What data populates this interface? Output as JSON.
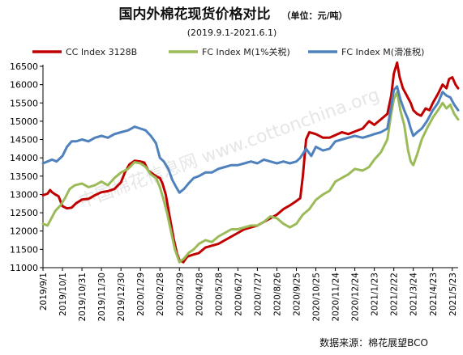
{
  "chart_data": {
    "type": "line",
    "title": "国内外棉花现货价格对比",
    "unit_note": "（单位：元/吨）",
    "subtitle": "(2019.9.1-2021.6.1)",
    "source": "数据来源：棉花展望BCO",
    "watermark": "中国棉花信息网 www.cottonchina.org",
    "ylim": [
      11000,
      16500
    ],
    "yticks": [
      11000,
      11500,
      12000,
      12500,
      13000,
      13500,
      14000,
      14500,
      15000,
      15500,
      16000,
      16500
    ],
    "xlim": [
      "2019-09-01",
      "2021-06-01"
    ],
    "xtick_labels": [
      {
        "date": "2019-09-01",
        "label": "2019/9/1"
      },
      {
        "date": "2019-10-01",
        "label": "2019/10/1"
      },
      {
        "date": "2019-10-31",
        "label": "2019/10/31"
      },
      {
        "date": "2019-11-30",
        "label": "2019/11/30"
      },
      {
        "date": "2019-12-30",
        "label": "2019/12/30"
      },
      {
        "date": "2020-01-29",
        "label": "2020/1/29"
      },
      {
        "date": "2020-02-28",
        "label": "2020/2/28"
      },
      {
        "date": "2020-03-29",
        "label": "2020/3/29"
      },
      {
        "date": "2020-04-28",
        "label": "2020/4/28"
      },
      {
        "date": "2020-05-28",
        "label": "2020/5/28"
      },
      {
        "date": "2020-06-27",
        "label": "2020/6/27"
      },
      {
        "date": "2020-07-27",
        "label": "2020/7/27"
      },
      {
        "date": "2020-08-26",
        "label": "2020/8/26"
      },
      {
        "date": "2020-09-25",
        "label": "2020/9/25"
      },
      {
        "date": "2020-10-25",
        "label": "2020/10/25"
      },
      {
        "date": "2020-11-24",
        "label": "2020/11/24"
      },
      {
        "date": "2020-12-24",
        "label": "2020/12/24"
      },
      {
        "date": "2021-01-23",
        "label": "2021/1/23"
      },
      {
        "date": "2021-02-22",
        "label": "2021/2/22"
      },
      {
        "date": "2021-03-24",
        "label": "2021/3/24"
      },
      {
        "date": "2021-04-23",
        "label": "2021/4/23"
      },
      {
        "date": "2021-05-23",
        "label": "2021/5/23"
      }
    ],
    "grid": false,
    "legend_placement": "top",
    "series": [
      {
        "name": "CC Index 3128B",
        "color": "#c00000",
        "points": [
          [
            "2019-09-01",
            12980
          ],
          [
            "2019-09-08",
            13020
          ],
          [
            "2019-09-12",
            13120
          ],
          [
            "2019-09-15",
            13060
          ],
          [
            "2019-09-20",
            13000
          ],
          [
            "2019-09-25",
            12950
          ],
          [
            "2019-10-01",
            12680
          ],
          [
            "2019-10-08",
            12620
          ],
          [
            "2019-10-15",
            12640
          ],
          [
            "2019-10-22",
            12760
          ],
          [
            "2019-10-31",
            12860
          ],
          [
            "2019-11-10",
            12880
          ],
          [
            "2019-11-20",
            12980
          ],
          [
            "2019-11-30",
            13060
          ],
          [
            "2019-12-10",
            13090
          ],
          [
            "2019-12-20",
            13150
          ],
          [
            "2019-12-30",
            13330
          ],
          [
            "2020-01-05",
            13600
          ],
          [
            "2020-01-12",
            13820
          ],
          [
            "2020-01-20",
            13920
          ],
          [
            "2020-01-29",
            13900
          ],
          [
            "2020-02-04",
            13870
          ],
          [
            "2020-02-10",
            13650
          ],
          [
            "2020-02-17",
            13560
          ],
          [
            "2020-02-24",
            13480
          ],
          [
            "2020-02-28",
            13450
          ],
          [
            "2020-03-03",
            13300
          ],
          [
            "2020-03-08",
            13000
          ],
          [
            "2020-03-14",
            12400
          ],
          [
            "2020-03-20",
            11800
          ],
          [
            "2020-03-25",
            11400
          ],
          [
            "2020-03-29",
            11200
          ],
          [
            "2020-04-04",
            11150
          ],
          [
            "2020-04-10",
            11300
          ],
          [
            "2020-04-18",
            11350
          ],
          [
            "2020-04-28",
            11400
          ],
          [
            "2020-05-08",
            11550
          ],
          [
            "2020-05-18",
            11600
          ],
          [
            "2020-05-28",
            11650
          ],
          [
            "2020-06-07",
            11750
          ],
          [
            "2020-06-17",
            11850
          ],
          [
            "2020-06-27",
            11950
          ],
          [
            "2020-07-07",
            12050
          ],
          [
            "2020-07-17",
            12100
          ],
          [
            "2020-07-27",
            12150
          ],
          [
            "2020-08-06",
            12250
          ],
          [
            "2020-08-16",
            12350
          ],
          [
            "2020-08-26",
            12450
          ],
          [
            "2020-09-05",
            12600
          ],
          [
            "2020-09-15",
            12700
          ],
          [
            "2020-09-25",
            12820
          ],
          [
            "2020-10-01",
            12900
          ],
          [
            "2020-10-05",
            13500
          ],
          [
            "2020-10-10",
            14500
          ],
          [
            "2020-10-15",
            14700
          ],
          [
            "2020-10-25",
            14650
          ],
          [
            "2020-11-05",
            14550
          ],
          [
            "2020-11-15",
            14550
          ],
          [
            "2020-11-24",
            14620
          ],
          [
            "2020-12-04",
            14700
          ],
          [
            "2020-12-14",
            14650
          ],
          [
            "2020-12-24",
            14720
          ],
          [
            "2021-01-05",
            14800
          ],
          [
            "2021-01-15",
            15000
          ],
          [
            "2021-01-23",
            14900
          ],
          [
            "2021-02-02",
            15050
          ],
          [
            "2021-02-12",
            15200
          ],
          [
            "2021-02-18",
            15700
          ],
          [
            "2021-02-22",
            16300
          ],
          [
            "2021-02-27",
            16600
          ],
          [
            "2021-03-03",
            16200
          ],
          [
            "2021-03-08",
            15900
          ],
          [
            "2021-03-14",
            15700
          ],
          [
            "2021-03-20",
            15500
          ],
          [
            "2021-03-24",
            15300
          ],
          [
            "2021-03-30",
            15200
          ],
          [
            "2021-04-05",
            15150
          ],
          [
            "2021-04-12",
            15350
          ],
          [
            "2021-04-18",
            15300
          ],
          [
            "2021-04-23",
            15500
          ],
          [
            "2021-05-01",
            15750
          ],
          [
            "2021-05-08",
            16000
          ],
          [
            "2021-05-14",
            15900
          ],
          [
            "2021-05-18",
            16150
          ],
          [
            "2021-05-23",
            16200
          ],
          [
            "2021-05-28",
            16000
          ],
          [
            "2021-06-01",
            15900
          ]
        ]
      },
      {
        "name": "FC Index M(1%关税)",
        "color": "#9bbb59",
        "points": [
          [
            "2019-09-01",
            12200
          ],
          [
            "2019-09-08",
            12150
          ],
          [
            "2019-09-14",
            12350
          ],
          [
            "2019-09-20",
            12550
          ],
          [
            "2019-09-28",
            12700
          ],
          [
            "2019-10-05",
            12900
          ],
          [
            "2019-10-12",
            13150
          ],
          [
            "2019-10-20",
            13250
          ],
          [
            "2019-10-31",
            13300
          ],
          [
            "2019-11-10",
            13200
          ],
          [
            "2019-11-20",
            13250
          ],
          [
            "2019-11-30",
            13350
          ],
          [
            "2019-12-10",
            13250
          ],
          [
            "2019-12-20",
            13450
          ],
          [
            "2019-12-30",
            13600
          ],
          [
            "2020-01-10",
            13700
          ],
          [
            "2020-01-20",
            13880
          ],
          [
            "2020-01-29",
            13850
          ],
          [
            "2020-02-06",
            13750
          ],
          [
            "2020-02-14",
            13550
          ],
          [
            "2020-02-22",
            13450
          ],
          [
            "2020-02-28",
            13200
          ],
          [
            "2020-03-04",
            12900
          ],
          [
            "2020-03-10",
            12500
          ],
          [
            "2020-03-16",
            12000
          ],
          [
            "2020-03-22",
            11500
          ],
          [
            "2020-03-29",
            11150
          ],
          [
            "2020-04-05",
            11250
          ],
          [
            "2020-04-12",
            11400
          ],
          [
            "2020-04-20",
            11500
          ],
          [
            "2020-04-28",
            11650
          ],
          [
            "2020-05-08",
            11750
          ],
          [
            "2020-05-18",
            11700
          ],
          [
            "2020-05-28",
            11850
          ],
          [
            "2020-06-07",
            11950
          ],
          [
            "2020-06-17",
            12050
          ],
          [
            "2020-06-27",
            12050
          ],
          [
            "2020-07-07",
            12100
          ],
          [
            "2020-07-17",
            12150
          ],
          [
            "2020-07-27",
            12150
          ],
          [
            "2020-08-06",
            12250
          ],
          [
            "2020-08-16",
            12400
          ],
          [
            "2020-08-26",
            12350
          ],
          [
            "2020-09-05",
            12200
          ],
          [
            "2020-09-15",
            12100
          ],
          [
            "2020-09-25",
            12200
          ],
          [
            "2020-10-05",
            12450
          ],
          [
            "2020-10-15",
            12600
          ],
          [
            "2020-10-25",
            12850
          ],
          [
            "2020-11-05",
            13000
          ],
          [
            "2020-11-15",
            13100
          ],
          [
            "2020-11-24",
            13350
          ],
          [
            "2020-12-04",
            13450
          ],
          [
            "2020-12-14",
            13550
          ],
          [
            "2020-12-24",
            13700
          ],
          [
            "2021-01-05",
            13650
          ],
          [
            "2021-01-15",
            13750
          ],
          [
            "2021-01-23",
            13950
          ],
          [
            "2021-02-02",
            14150
          ],
          [
            "2021-02-12",
            14500
          ],
          [
            "2021-02-17",
            15100
          ],
          [
            "2021-02-22",
            15600
          ],
          [
            "2021-02-27",
            15800
          ],
          [
            "2021-03-04",
            15300
          ],
          [
            "2021-03-10",
            14900
          ],
          [
            "2021-03-16",
            14200
          ],
          [
            "2021-03-20",
            13900
          ],
          [
            "2021-03-24",
            13800
          ],
          [
            "2021-03-30",
            14100
          ],
          [
            "2021-04-06",
            14500
          ],
          [
            "2021-04-14",
            14800
          ],
          [
            "2021-04-23",
            15100
          ],
          [
            "2021-05-01",
            15300
          ],
          [
            "2021-05-08",
            15500
          ],
          [
            "2021-05-14",
            15350
          ],
          [
            "2021-05-20",
            15450
          ],
          [
            "2021-05-26",
            15200
          ],
          [
            "2021-06-01",
            15050
          ]
        ]
      },
      {
        "name": "FC Index M(滑准税)",
        "color": "#4f81bd",
        "points": [
          [
            "2019-09-01",
            13850
          ],
          [
            "2019-09-08",
            13900
          ],
          [
            "2019-09-15",
            13950
          ],
          [
            "2019-09-22",
            13900
          ],
          [
            "2019-10-01",
            14050
          ],
          [
            "2019-10-08",
            14300
          ],
          [
            "2019-10-15",
            14450
          ],
          [
            "2019-10-22",
            14450
          ],
          [
            "2019-10-31",
            14500
          ],
          [
            "2019-11-10",
            14450
          ],
          [
            "2019-11-20",
            14550
          ],
          [
            "2019-11-30",
            14600
          ],
          [
            "2019-12-10",
            14550
          ],
          [
            "2019-12-20",
            14650
          ],
          [
            "2019-12-30",
            14700
          ],
          [
            "2020-01-10",
            14750
          ],
          [
            "2020-01-20",
            14850
          ],
          [
            "2020-01-29",
            14800
          ],
          [
            "2020-02-06",
            14750
          ],
          [
            "2020-02-14",
            14600
          ],
          [
            "2020-02-22",
            14400
          ],
          [
            "2020-02-28",
            14000
          ],
          [
            "2020-03-05",
            13900
          ],
          [
            "2020-03-12",
            13700
          ],
          [
            "2020-03-18",
            13400
          ],
          [
            "2020-03-24",
            13200
          ],
          [
            "2020-03-29",
            13050
          ],
          [
            "2020-04-05",
            13150
          ],
          [
            "2020-04-12",
            13300
          ],
          [
            "2020-04-20",
            13450
          ],
          [
            "2020-04-28",
            13500
          ],
          [
            "2020-05-08",
            13600
          ],
          [
            "2020-05-18",
            13600
          ],
          [
            "2020-05-28",
            13700
          ],
          [
            "2020-06-07",
            13750
          ],
          [
            "2020-06-17",
            13800
          ],
          [
            "2020-06-27",
            13800
          ],
          [
            "2020-07-07",
            13850
          ],
          [
            "2020-07-17",
            13900
          ],
          [
            "2020-07-27",
            13850
          ],
          [
            "2020-08-06",
            13950
          ],
          [
            "2020-08-16",
            13900
          ],
          [
            "2020-08-26",
            13850
          ],
          [
            "2020-09-05",
            13900
          ],
          [
            "2020-09-15",
            13850
          ],
          [
            "2020-09-25",
            13900
          ],
          [
            "2020-10-01",
            14000
          ],
          [
            "2020-10-10",
            14250
          ],
          [
            "2020-10-18",
            14050
          ],
          [
            "2020-10-25",
            14300
          ],
          [
            "2020-11-05",
            14200
          ],
          [
            "2020-11-15",
            14250
          ],
          [
            "2020-11-24",
            14450
          ],
          [
            "2020-12-04",
            14500
          ],
          [
            "2020-12-14",
            14550
          ],
          [
            "2020-12-24",
            14600
          ],
          [
            "2021-01-05",
            14550
          ],
          [
            "2021-01-15",
            14600
          ],
          [
            "2021-01-23",
            14650
          ],
          [
            "2021-02-02",
            14700
          ],
          [
            "2021-02-12",
            14800
          ],
          [
            "2021-02-17",
            15300
          ],
          [
            "2021-02-22",
            15850
          ],
          [
            "2021-02-27",
            15950
          ],
          [
            "2021-03-04",
            15600
          ],
          [
            "2021-03-10",
            15300
          ],
          [
            "2021-03-16",
            15050
          ],
          [
            "2021-03-20",
            14800
          ],
          [
            "2021-03-24",
            14600
          ],
          [
            "2021-03-30",
            14700
          ],
          [
            "2021-04-06",
            14800
          ],
          [
            "2021-04-14",
            15000
          ],
          [
            "2021-04-23",
            15300
          ],
          [
            "2021-05-01",
            15500
          ],
          [
            "2021-05-08",
            15800
          ],
          [
            "2021-05-14",
            15700
          ],
          [
            "2021-05-20",
            15650
          ],
          [
            "2021-05-26",
            15450
          ],
          [
            "2021-06-01",
            15300
          ]
        ]
      }
    ]
  }
}
